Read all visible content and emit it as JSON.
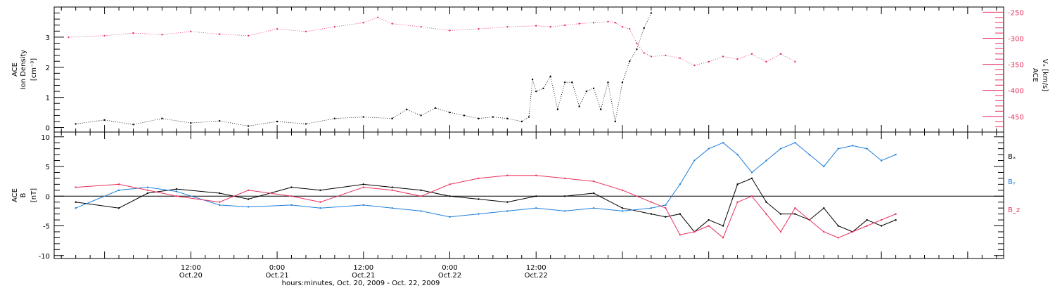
{
  "chart_data": [
    {
      "type": "scatter",
      "panel": "top",
      "ylabel_lines": [
        "ACE",
        "Ion Density"
      ],
      "yunit": "[cm⁻³]",
      "y2label": "ACE",
      "y2unit": "Vₓ [km/s]",
      "ylim": [
        -0.15,
        4.0
      ],
      "y2lim": [
        -480,
        -240
      ],
      "yticks": [
        0,
        1,
        2,
        3
      ],
      "y2ticks": [
        -250,
        -300,
        -350,
        -400,
        -450
      ],
      "series": [
        {
          "color": "#000000",
          "axis": "left",
          "points": [
            [
              -16,
              0.12
            ],
            [
              -12,
              0.25
            ],
            [
              -8,
              0.1
            ],
            [
              -4,
              0.3
            ],
            [
              0,
              0.15
            ],
            [
              4,
              0.22
            ],
            [
              8,
              0.05
            ],
            [
              12,
              0.2
            ],
            [
              16,
              0.12
            ],
            [
              20,
              0.3
            ],
            [
              24,
              0.35
            ],
            [
              28,
              0.3
            ],
            [
              30,
              0.6
            ],
            [
              32,
              0.4
            ],
            [
              34,
              0.65
            ],
            [
              36,
              0.5
            ],
            [
              38,
              0.4
            ],
            [
              40,
              0.3
            ],
            [
              42,
              0.35
            ],
            [
              44,
              0.3
            ],
            [
              46,
              0.2
            ],
            [
              47,
              0.35
            ],
            [
              47.5,
              1.6
            ],
            [
              48,
              1.2
            ],
            [
              49,
              1.3
            ],
            [
              50,
              1.7
            ],
            [
              51,
              0.6
            ],
            [
              52,
              1.5
            ],
            [
              53,
              1.5
            ],
            [
              54,
              0.7
            ],
            [
              55,
              1.2
            ],
            [
              56,
              1.3
            ],
            [
              57,
              0.6
            ],
            [
              58,
              1.5
            ],
            [
              59,
              0.2
            ],
            [
              60,
              1.5
            ],
            [
              61,
              2.2
            ],
            [
              62,
              2.6
            ],
            [
              63,
              3.3
            ],
            [
              64,
              3.8
            ]
          ]
        },
        {
          "color": "#e8305c",
          "axis": "right",
          "points": [
            [
              -17,
              -298
            ],
            [
              -12,
              -295
            ],
            [
              -8,
              -290
            ],
            [
              -4,
              -293
            ],
            [
              0,
              -287
            ],
            [
              4,
              -292
            ],
            [
              8,
              -295
            ],
            [
              12,
              -282
            ],
            [
              16,
              -287
            ],
            [
              20,
              -278
            ],
            [
              24,
              -270
            ],
            [
              26,
              -260
            ],
            [
              28,
              -272
            ],
            [
              32,
              -278
            ],
            [
              36,
              -285
            ],
            [
              40,
              -282
            ],
            [
              44,
              -278
            ],
            [
              48,
              -276
            ],
            [
              50,
              -278
            ],
            [
              52,
              -275
            ],
            [
              54,
              -272
            ],
            [
              56,
              -270
            ],
            [
              58,
              -268
            ],
            [
              59,
              -270
            ],
            [
              60,
              -278
            ],
            [
              61,
              -282
            ],
            [
              62,
              -310
            ],
            [
              63,
              -328
            ],
            [
              64,
              -335
            ],
            [
              66,
              -333
            ],
            [
              68,
              -338
            ],
            [
              70,
              -352
            ],
            [
              72,
              -345
            ],
            [
              74,
              -335
            ],
            [
              76,
              -340
            ],
            [
              78,
              -330
            ],
            [
              80,
              -345
            ],
            [
              82,
              -330
            ],
            [
              84,
              -345
            ]
          ]
        }
      ]
    },
    {
      "type": "scatter",
      "panel": "bottom",
      "ylabel_lines": [
        "ACE",
        "B"
      ],
      "yunit": "[nT]",
      "ylim": [
        -10.5,
        10.8
      ],
      "yticks": [
        10,
        5,
        0,
        -5,
        -10
      ],
      "series": [
        {
          "name": "Bₓ",
          "color": "#000000",
          "points": [
            [
              -16,
              -1
            ],
            [
              -10,
              -2
            ],
            [
              -6,
              0.5
            ],
            [
              -2,
              1.2
            ],
            [
              4,
              0.5
            ],
            [
              8,
              -0.5
            ],
            [
              14,
              1.5
            ],
            [
              18,
              1
            ],
            [
              24,
              2
            ],
            [
              28,
              1.5
            ],
            [
              32,
              1
            ],
            [
              36,
              0
            ],
            [
              40,
              -0.5
            ],
            [
              44,
              -1
            ],
            [
              48,
              0
            ],
            [
              52,
              0
            ],
            [
              56,
              0.5
            ],
            [
              60,
              -2
            ],
            [
              64,
              -3
            ],
            [
              66,
              -3.5
            ],
            [
              68,
              -3
            ],
            [
              70,
              -6
            ],
            [
              72,
              -4
            ],
            [
              74,
              -5
            ],
            [
              76,
              2
            ],
            [
              78,
              3
            ],
            [
              80,
              -1
            ],
            [
              82,
              -3
            ],
            [
              84,
              -3
            ],
            [
              86,
              -4
            ],
            [
              88,
              -2
            ],
            [
              90,
              -5
            ],
            [
              92,
              -6
            ],
            [
              94,
              -4
            ],
            [
              96,
              -5
            ],
            [
              98,
              -4
            ]
          ]
        },
        {
          "name": "Bᵧ",
          "color": "#1f7fd9",
          "points": [
            [
              -16,
              -2
            ],
            [
              -10,
              1
            ],
            [
              -6,
              1.5
            ],
            [
              -2,
              0.8
            ],
            [
              4,
              -1.5
            ],
            [
              8,
              -1.8
            ],
            [
              14,
              -1.5
            ],
            [
              18,
              -2
            ],
            [
              24,
              -1.5
            ],
            [
              28,
              -2
            ],
            [
              32,
              -2.5
            ],
            [
              36,
              -3.5
            ],
            [
              40,
              -3
            ],
            [
              44,
              -2.5
            ],
            [
              48,
              -2
            ],
            [
              52,
              -2.5
            ],
            [
              56,
              -2
            ],
            [
              60,
              -2.5
            ],
            [
              64,
              -2
            ],
            [
              66,
              -1.5
            ],
            [
              68,
              2
            ],
            [
              70,
              6
            ],
            [
              72,
              8
            ],
            [
              74,
              9
            ],
            [
              76,
              7
            ],
            [
              78,
              4
            ],
            [
              80,
              6
            ],
            [
              82,
              8
            ],
            [
              84,
              9
            ],
            [
              86,
              7
            ],
            [
              88,
              5
            ],
            [
              90,
              8
            ],
            [
              92,
              8.5
            ],
            [
              94,
              8
            ],
            [
              96,
              6
            ],
            [
              98,
              7
            ]
          ]
        },
        {
          "name": "B_z",
          "color": "#e8305c",
          "points": [
            [
              -16,
              1.5
            ],
            [
              -10,
              2
            ],
            [
              -6,
              1
            ],
            [
              -2,
              0
            ],
            [
              4,
              -1
            ],
            [
              8,
              1
            ],
            [
              14,
              0
            ],
            [
              18,
              -1
            ],
            [
              24,
              1.5
            ],
            [
              28,
              1
            ],
            [
              32,
              0
            ],
            [
              36,
              2
            ],
            [
              40,
              3
            ],
            [
              44,
              3.5
            ],
            [
              48,
              3.5
            ],
            [
              52,
              3
            ],
            [
              56,
              2.5
            ],
            [
              60,
              1
            ],
            [
              64,
              -1
            ],
            [
              66,
              -2
            ],
            [
              68,
              -6.5
            ],
            [
              70,
              -6
            ],
            [
              72,
              -5
            ],
            [
              74,
              -7
            ],
            [
              76,
              -1
            ],
            [
              78,
              0
            ],
            [
              80,
              -3
            ],
            [
              82,
              -6
            ],
            [
              84,
              -2
            ],
            [
              86,
              -4
            ],
            [
              88,
              -6
            ],
            [
              90,
              -7
            ],
            [
              92,
              -6
            ],
            [
              94,
              -5
            ],
            [
              96,
              -4
            ],
            [
              98,
              -3
            ]
          ]
        }
      ]
    }
  ],
  "x_axis": {
    "xlim": [
      -19,
      113
    ],
    "ticks": [
      {
        "x": 0,
        "time": "12:00",
        "date": "Oct.20"
      },
      {
        "x": 12,
        "time": "0:00",
        "date": "Oct.21"
      },
      {
        "x": 24,
        "time": "12:00",
        "date": "Oct.21"
      },
      {
        "x": 36,
        "time": "0:00",
        "date": "Oct.22"
      },
      {
        "x": 48,
        "time": "12:00",
        "date": "Oct.22"
      }
    ],
    "xlabel": "hours:minutes, Oct. 20, 2009 - Oct. 22, 2009"
  },
  "colors": {
    "black": "#000000",
    "red": "#e8305c",
    "blue": "#1f7fd9"
  }
}
